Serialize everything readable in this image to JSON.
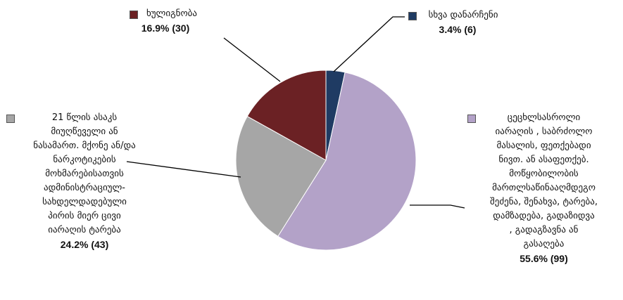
{
  "chart_data": {
    "type": "pie",
    "slices": [
      {
        "label": "სხვა დანარჩენი",
        "percent": 3.4,
        "count": 6,
        "value_text": "3.4%  (6)",
        "color": "#1f3b63"
      },
      {
        "label": "ცეცხლსასროლი იარაღის , საბრძოლო მასალის, ფეთქებადი ნივთ. ან ასაფეთქებ. მოწყობილობის მართლსაწინააღმდეგო შეძენა, შენახვა, ტარება, დამზადება, გადაზიდვა , გადაგზავნა ან გასაღება",
        "percent": 55.6,
        "count": 99,
        "value_text": "55.6%  (99)",
        "color": "#b3a2c8"
      },
      {
        "label": "21 წლის ასაკს მიუღწეველი ან ნასამართ. მქონე ან/და ნარკოტიკების მოხმარებისათვის ადმინისტრაციულ-სახდელდადებული პირის მიერ ცივი იარაღის ტარება",
        "percent": 24.2,
        "count": 43,
        "value_text": "24.2%  (43)",
        "color": "#a6a6a6"
      },
      {
        "label": "ხულიგნობა",
        "percent": 16.9,
        "count": 30,
        "value_text": "16.9%  (30)",
        "color": "#6b2124"
      }
    ]
  },
  "labels": {
    "other": {
      "lines": [
        "სხვა დანარჩენი"
      ],
      "value": "3.4%  (6)"
    },
    "firearms": {
      "lines": [
        "ცეცხლსასროლი",
        "იარაღის , საბრძოლო",
        "მასალის, ფეთქებადი",
        "ნივთ. ან ასაფეთქებ.",
        "მოწყობილობის",
        "მართლსაწინააღმდეგო",
        "შეძენა, შენახვა, ტარება,",
        "დამზადება, გადაზიდვა",
        ", გადაგზავნა ან",
        "გასაღება"
      ],
      "value": "55.6%  (99)"
    },
    "coldweapon": {
      "lines": [
        "21 წლის ასაკს",
        "მიუღწეველი ან",
        "ნასამართ. მქონე ან/და",
        "ნარკოტიკების",
        "მოხმარებისათვის",
        "ადმინისტრაციულ-",
        "სახდელდადებული",
        "პირის მიერ ცივი",
        "იარაღის ტარება"
      ],
      "value": "24.2%  (43)"
    },
    "hooliganism": {
      "lines": [
        "ხულიგნობა"
      ],
      "value": "16.9%  (30)"
    }
  }
}
